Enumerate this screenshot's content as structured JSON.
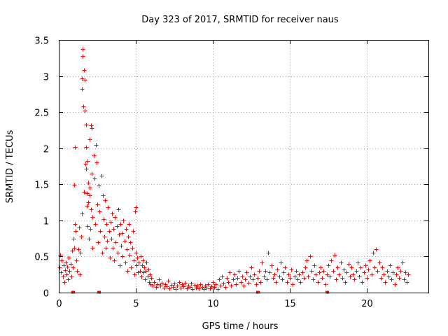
{
  "chart_data": {
    "type": "scatter",
    "title": "Day 323 of 2017, SRMTID for receiver naus",
    "xlabel": "GPS time / hours",
    "ylabel": "SRMTID / TECUs",
    "xlim": [
      0,
      24
    ],
    "ylim": [
      0,
      3.5
    ],
    "xticks": [
      0,
      5,
      10,
      15,
      20
    ],
    "xtick_labels": [
      "0",
      "5",
      "10",
      "15",
      "20"
    ],
    "yticks": [
      0,
      0.5,
      1,
      1.5,
      2,
      2.5,
      3,
      3.5
    ],
    "ytick_labels": [
      "0",
      "0.5",
      "1",
      "1.5",
      "2",
      "2.5",
      "3",
      "3.5"
    ],
    "grid": true,
    "marker": "plus",
    "series": [
      {
        "name": "SRMTID",
        "color": "#ff0000",
        "points": [
          [
            0.05,
            0.35
          ],
          [
            0.1,
            0.52
          ],
          [
            0.15,
            0.28
          ],
          [
            0.2,
            0.45
          ],
          [
            0.25,
            0.22
          ],
          [
            0.3,
            0.38
          ],
          [
            0.35,
            0.15
          ],
          [
            0.4,
            0.31
          ],
          [
            0.45,
            0.42
          ],
          [
            0.5,
            0.25
          ],
          [
            0.55,
            0.36
          ],
          [
            0.6,
            0.18
          ],
          [
            0.65,
            0.48
          ],
          [
            0.7,
            0.3
          ],
          [
            0.75,
            0.4
          ],
          [
            0.8,
            0.22
          ],
          [
            0.85,
            0.58
          ],
          [
            0.9,
            0.35
          ],
          [
            0.95,
            0.75
          ],
          [
            1.0,
            0.62
          ],
          [
            1.05,
            0.95
          ],
          [
            1.1,
            0.85
          ],
          [
            1.0,
            1.49
          ],
          [
            1.05,
            2.02
          ],
          [
            1.15,
            0.45
          ],
          [
            1.2,
            0.3
          ],
          [
            1.25,
            0.6
          ],
          [
            1.3,
            0.9
          ],
          [
            1.35,
            0.25
          ],
          [
            1.4,
            0.55
          ],
          [
            1.45,
            0.78
          ],
          [
            1.5,
            1.1
          ],
          [
            1.5,
            2.82
          ],
          [
            1.52,
            2.97
          ],
          [
            1.55,
            3.28
          ],
          [
            1.55,
            3.37
          ],
          [
            1.6,
            2.58
          ],
          [
            1.62,
            1.4
          ],
          [
            1.65,
            3.08
          ],
          [
            1.68,
            2.95
          ],
          [
            1.7,
            2.52
          ],
          [
            1.72,
            1.78
          ],
          [
            1.75,
            2.33
          ],
          [
            1.75,
            2.02
          ],
          [
            1.78,
            1.72
          ],
          [
            1.8,
            1.38
          ],
          [
            1.82,
            1.2
          ],
          [
            1.85,
            0.92
          ],
          [
            1.88,
            1.82
          ],
          [
            1.9,
            1.52
          ],
          [
            1.92,
            1.25
          ],
          [
            1.95,
            0.75
          ],
          [
            1.98,
            1.45
          ],
          [
            2.0,
            2.12
          ],
          [
            2.02,
            1.35
          ],
          [
            2.05,
            0.88
          ],
          [
            2.08,
            1.15
          ],
          [
            2.1,
            2.32
          ],
          [
            2.12,
            2.28
          ],
          [
            2.15,
            1.65
          ],
          [
            2.18,
            0.62
          ],
          [
            2.2,
            1.05
          ],
          [
            2.25,
            1.9
          ],
          [
            2.3,
            1.58
          ],
          [
            2.35,
            0.95
          ],
          [
            2.4,
            2.05
          ],
          [
            2.45,
            1.8
          ],
          [
            2.5,
            1.22
          ],
          [
            2.55,
            0.7
          ],
          [
            2.6,
            1.48
          ],
          [
            2.65,
            1.12
          ],
          [
            2.7,
            0.85
          ],
          [
            2.75,
            1.62
          ],
          [
            2.8,
            0.55
          ],
          [
            2.85,
            1.35
          ],
          [
            2.9,
            1.02
          ],
          [
            2.95,
            0.78
          ],
          [
            3.0,
            1.28
          ],
          [
            3.05,
            0.62
          ],
          [
            3.1,
            0.95
          ],
          [
            3.15,
            0.72
          ],
          [
            3.2,
            1.18
          ],
          [
            3.25,
            0.85
          ],
          [
            3.3,
            0.48
          ],
          [
            3.35,
            0.98
          ],
          [
            3.4,
            0.75
          ],
          [
            3.45,
            1.1
          ],
          [
            3.5,
            0.62
          ],
          [
            3.55,
            0.88
          ],
          [
            3.6,
            0.45
          ],
          [
            3.65,
            1.05
          ],
          [
            3.7,
            0.7
          ],
          [
            3.75,
            0.92
          ],
          [
            3.8,
            0.55
          ],
          [
            3.85,
            1.15
          ],
          [
            3.9,
            0.8
          ],
          [
            3.95,
            0.38
          ],
          [
            4.0,
            0.95
          ],
          [
            4.05,
            0.65
          ],
          [
            4.1,
            0.82
          ],
          [
            4.15,
            0.5
          ],
          [
            4.2,
            1.0
          ],
          [
            4.25,
            0.72
          ],
          [
            4.3,
            0.42
          ],
          [
            4.35,
            0.88
          ],
          [
            4.4,
            0.6
          ],
          [
            4.45,
            0.3
          ],
          [
            4.5,
            0.78
          ],
          [
            4.55,
            0.95
          ],
          [
            4.6,
            0.52
          ],
          [
            4.65,
            0.7
          ],
          [
            4.7,
            0.35
          ],
          [
            4.75,
            0.62
          ],
          [
            4.8,
            0.85
          ],
          [
            4.85,
            0.45
          ],
          [
            4.9,
            0.25
          ],
          [
            4.95,
            1.12
          ],
          [
            5.0,
            1.18
          ],
          [
            5.02,
            0.55
          ],
          [
            5.05,
            0.38
          ],
          [
            5.1,
            0.48
          ],
          [
            5.15,
            0.28
          ],
          [
            5.2,
            0.42
          ],
          [
            5.25,
            0.3
          ],
          [
            5.3,
            0.5
          ],
          [
            5.35,
            0.22
          ],
          [
            5.4,
            0.38
          ],
          [
            5.45,
            0.45
          ],
          [
            5.5,
            0.28
          ],
          [
            5.55,
            0.35
          ],
          [
            5.6,
            0.18
          ],
          [
            5.65,
            0.3
          ],
          [
            5.7,
            0.42
          ],
          [
            5.75,
            0.22
          ],
          [
            5.8,
            0.32
          ],
          [
            5.85,
            0.15
          ],
          [
            5.9,
            0.25
          ],
          [
            5.95,
            0.12
          ],
          [
            6.0,
            0.2
          ],
          [
            6.1,
            0.1
          ],
          [
            6.2,
            0.15
          ],
          [
            6.3,
            0.08
          ],
          [
            6.4,
            0.12
          ],
          [
            6.5,
            0.18
          ],
          [
            6.6,
            0.1
          ],
          [
            6.7,
            0.14
          ],
          [
            6.8,
            0.07
          ],
          [
            6.9,
            0.12
          ],
          [
            7.0,
            0.09
          ],
          [
            7.1,
            0.16
          ],
          [
            7.2,
            0.06
          ],
          [
            7.3,
            0.11
          ],
          [
            7.4,
            0.08
          ],
          [
            7.5,
            0.13
          ],
          [
            7.6,
            0.05
          ],
          [
            7.7,
            0.1
          ],
          [
            7.8,
            0.15
          ],
          [
            7.9,
            0.07
          ],
          [
            8.0,
            0.12
          ],
          [
            8.1,
            0.09
          ],
          [
            8.2,
            0.14
          ],
          [
            8.3,
            0.06
          ],
          [
            8.4,
            0.1
          ],
          [
            8.5,
            0.08
          ],
          [
            8.6,
            0.13
          ],
          [
            8.7,
            0.05
          ],
          [
            8.8,
            0.11
          ],
          [
            8.9,
            0.07
          ],
          [
            9.0,
            0.1
          ],
          [
            9.1,
            0.06
          ],
          [
            9.2,
            0.12
          ],
          [
            9.3,
            0.08
          ],
          [
            9.4,
            0.05
          ],
          [
            9.5,
            0.1
          ],
          [
            9.6,
            0.07
          ],
          [
            9.7,
            0.12
          ],
          [
            9.8,
            0.06
          ],
          [
            9.9,
            0.09
          ],
          [
            10.0,
            0.15
          ],
          [
            10.1,
            0.08
          ],
          [
            10.2,
            0.12
          ],
          [
            10.3,
            0.05
          ],
          [
            10.4,
            0.18
          ],
          [
            10.5,
            0.1
          ],
          [
            10.6,
            0.22
          ],
          [
            10.7,
            0.13
          ],
          [
            10.8,
            0.08
          ],
          [
            10.9,
            0.2
          ],
          [
            11.0,
            0.15
          ],
          [
            11.1,
            0.28
          ],
          [
            11.2,
            0.1
          ],
          [
            11.3,
            0.18
          ],
          [
            11.4,
            0.25
          ],
          [
            11.5,
            0.12
          ],
          [
            11.6,
            0.2
          ],
          [
            11.7,
            0.3
          ],
          [
            11.8,
            0.15
          ],
          [
            11.9,
            0.22
          ],
          [
            12.0,
            0.1
          ],
          [
            12.1,
            0.18
          ],
          [
            12.2,
            0.28
          ],
          [
            12.3,
            0.14
          ],
          [
            12.4,
            0.22
          ],
          [
            12.5,
            0.35
          ],
          [
            12.6,
            0.18
          ],
          [
            12.7,
            0.25
          ],
          [
            12.8,
            0.12
          ],
          [
            12.9,
            0.2
          ],
          [
            13.0,
            0.3
          ],
          [
            13.1,
            0.15
          ],
          [
            13.2,
            0.42
          ],
          [
            13.3,
            0.22
          ],
          [
            13.4,
            0.3
          ],
          [
            13.5,
            0.18
          ],
          [
            13.6,
            0.55
          ],
          [
            13.7,
            0.28
          ],
          [
            13.8,
            0.38
          ],
          [
            13.9,
            0.2
          ],
          [
            14.0,
            0.25
          ],
          [
            14.1,
            0.15
          ],
          [
            14.2,
            0.32
          ],
          [
            14.3,
            0.22
          ],
          [
            14.4,
            0.42
          ],
          [
            14.5,
            0.18
          ],
          [
            14.6,
            0.28
          ],
          [
            14.7,
            0.35
          ],
          [
            14.8,
            0.15
          ],
          [
            14.9,
            0.25
          ],
          [
            15.0,
            0.2
          ],
          [
            15.1,
            0.32
          ],
          [
            15.2,
            0.12
          ],
          [
            15.3,
            0.22
          ],
          [
            15.4,
            0.3
          ],
          [
            15.5,
            0.18
          ],
          [
            15.6,
            0.25
          ],
          [
            15.7,
            0.15
          ],
          [
            15.8,
            0.28
          ],
          [
            15.9,
            0.2
          ],
          [
            16.0,
            0.35
          ],
          [
            16.1,
            0.45
          ],
          [
            16.2,
            0.22
          ],
          [
            16.3,
            0.5
          ],
          [
            16.4,
            0.3
          ],
          [
            16.5,
            0.18
          ],
          [
            16.6,
            0.38
          ],
          [
            16.7,
            0.25
          ],
          [
            16.8,
            0.15
          ],
          [
            16.9,
            0.28
          ],
          [
            17.0,
            0.35
          ],
          [
            17.1,
            0.2
          ],
          [
            17.2,
            0.3
          ],
          [
            17.3,
            0.12
          ],
          [
            17.4,
            0.25
          ],
          [
            17.5,
            0.38
          ],
          [
            17.6,
            0.22
          ],
          [
            17.7,
            0.45
          ],
          [
            17.8,
            0.3
          ],
          [
            17.9,
            0.52
          ],
          [
            18.0,
            0.18
          ],
          [
            18.1,
            0.35
          ],
          [
            18.2,
            0.25
          ],
          [
            18.3,
            0.42
          ],
          [
            18.4,
            0.2
          ],
          [
            18.5,
            0.32
          ],
          [
            18.6,
            0.15
          ],
          [
            18.7,
            0.28
          ],
          [
            18.8,
            0.4
          ],
          [
            18.9,
            0.22
          ],
          [
            19.0,
            0.35
          ],
          [
            19.1,
            0.25
          ],
          [
            19.2,
            0.18
          ],
          [
            19.3,
            0.3
          ],
          [
            19.4,
            0.42
          ],
          [
            19.5,
            0.22
          ],
          [
            19.6,
            0.35
          ],
          [
            19.7,
            0.15
          ],
          [
            19.8,
            0.28
          ],
          [
            19.9,
            0.38
          ],
          [
            20.0,
            0.2
          ],
          [
            20.1,
            0.32
          ],
          [
            20.2,
            0.45
          ],
          [
            20.3,
            0.25
          ],
          [
            20.4,
            0.55
          ],
          [
            20.5,
            0.35
          ],
          [
            20.6,
            0.6
          ],
          [
            20.7,
            0.3
          ],
          [
            20.8,
            0.42
          ],
          [
            20.9,
            0.2
          ],
          [
            21.0,
            0.35
          ],
          [
            21.1,
            0.25
          ],
          [
            21.2,
            0.15
          ],
          [
            21.3,
            0.3
          ],
          [
            21.4,
            0.22
          ],
          [
            21.5,
            0.38
          ],
          [
            21.6,
            0.18
          ],
          [
            21.7,
            0.28
          ],
          [
            21.8,
            0.12
          ],
          [
            21.9,
            0.25
          ],
          [
            22.0,
            0.35
          ],
          [
            22.1,
            0.2
          ],
          [
            22.2,
            0.3
          ],
          [
            22.3,
            0.42
          ],
          [
            22.4,
            0.18
          ],
          [
            22.5,
            0.28
          ],
          [
            22.6,
            0.15
          ],
          [
            22.7,
            0.25
          ],
          [
            0.9,
            0.0
          ],
          [
            2.6,
            0.0
          ],
          [
            12.9,
            0.0
          ],
          [
            17.4,
            0.0
          ]
        ]
      }
    ]
  }
}
